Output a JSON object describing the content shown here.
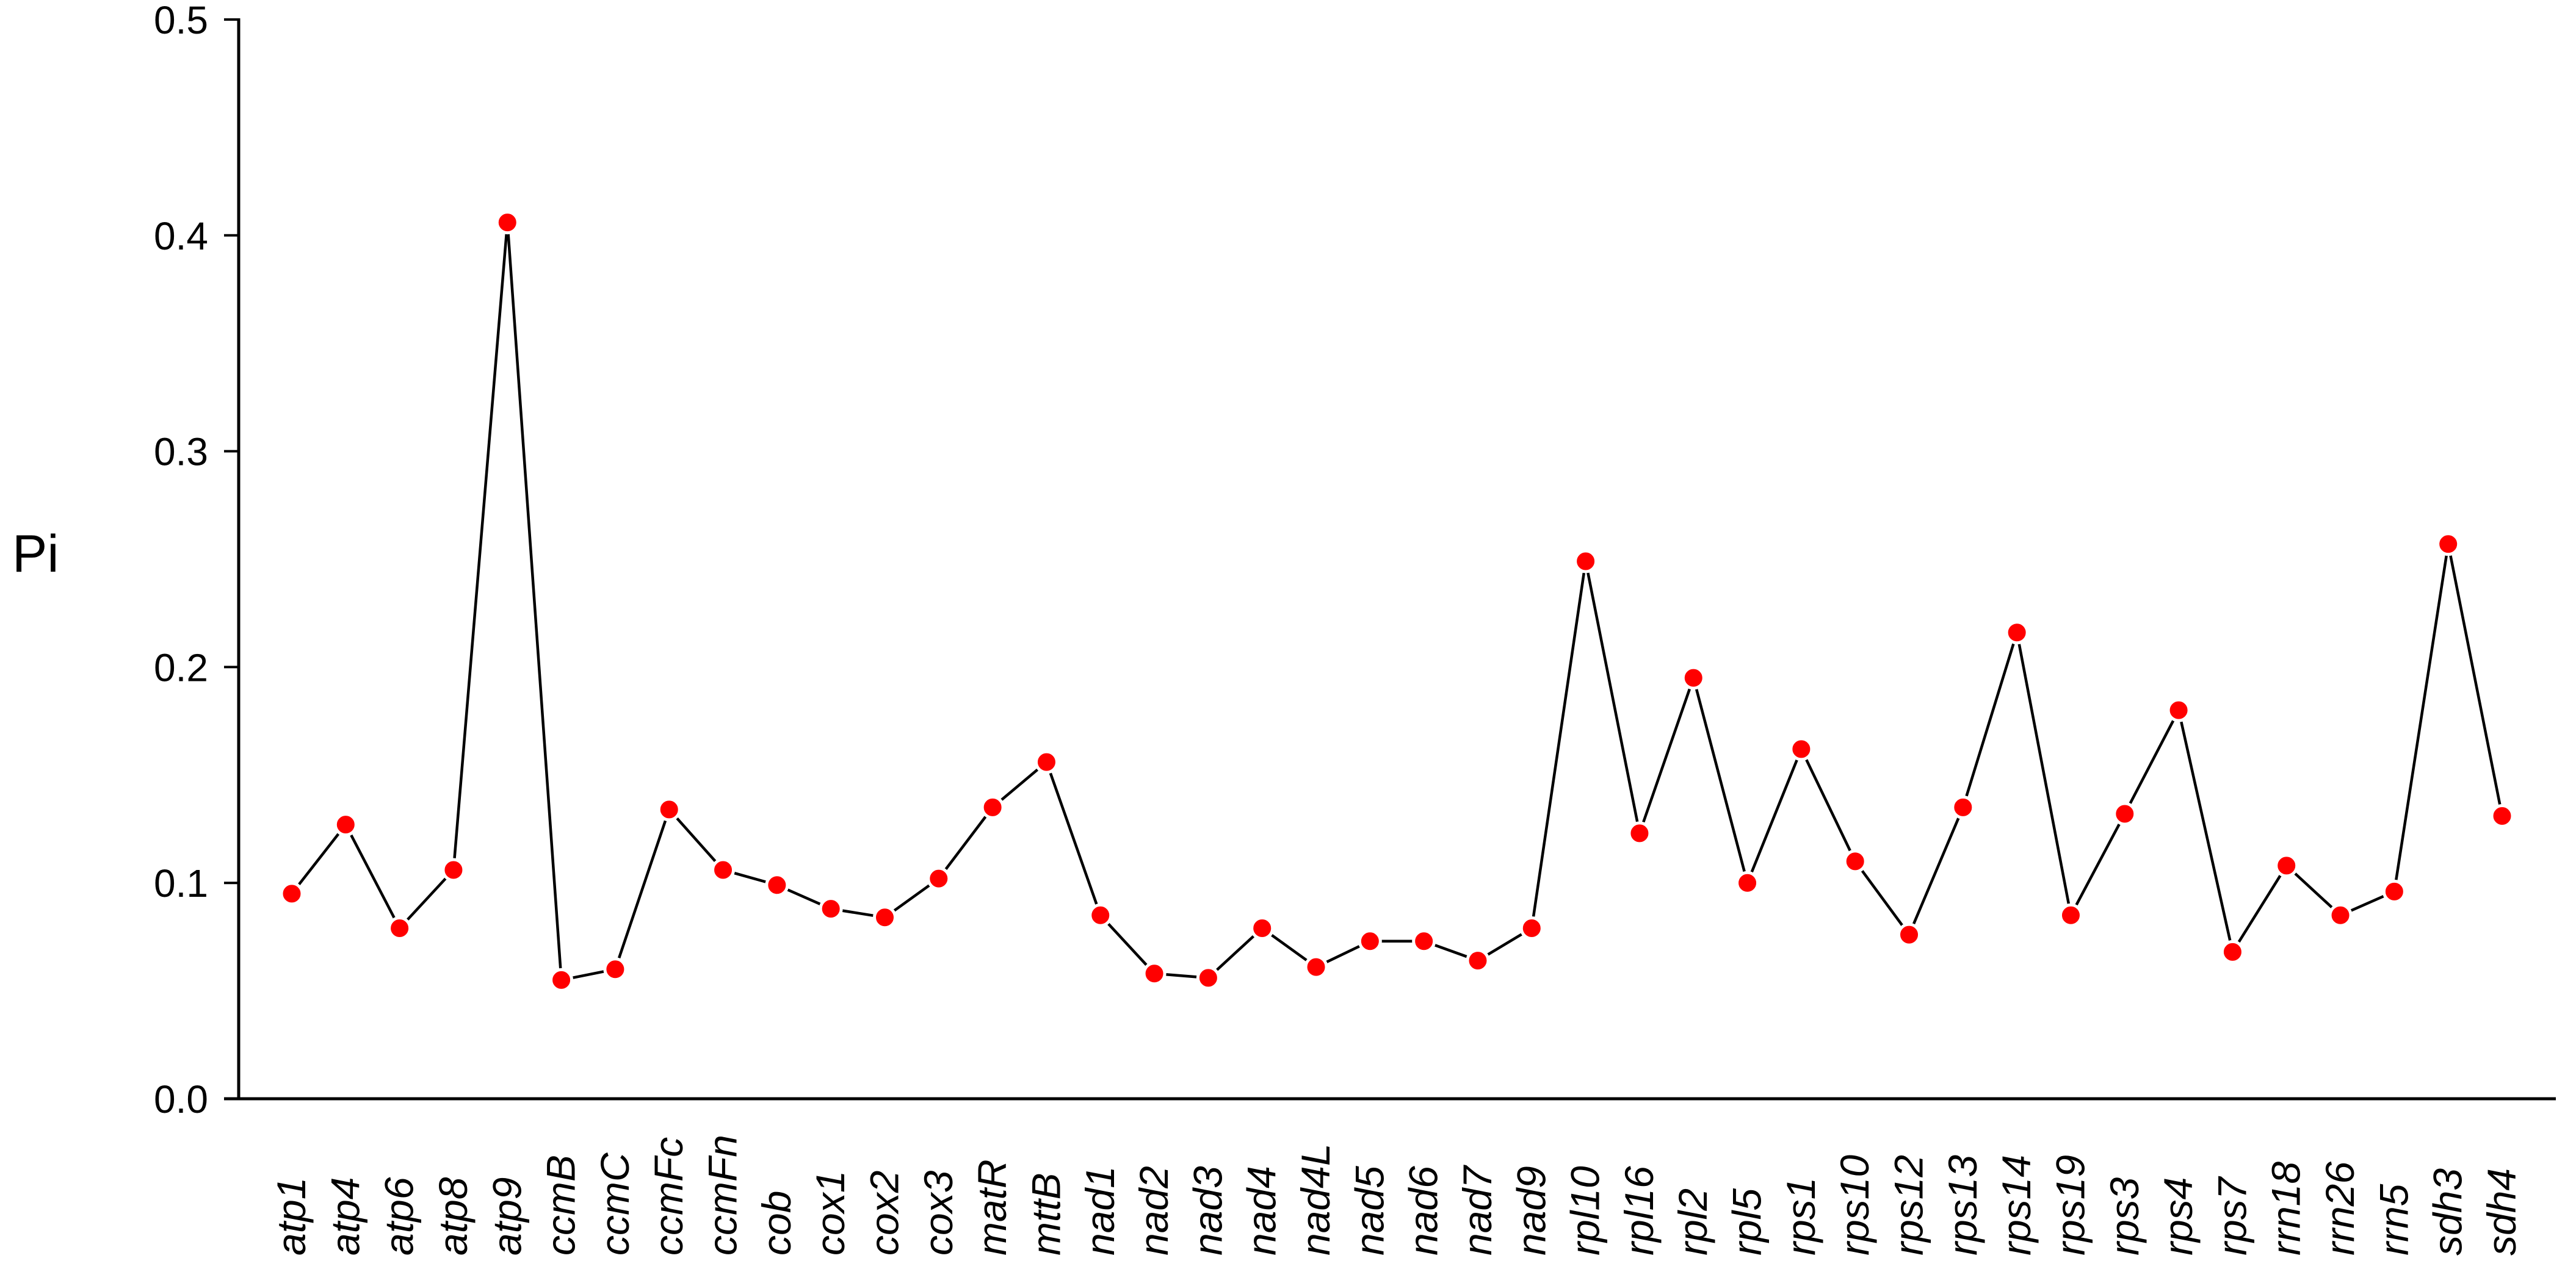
{
  "chart_data": {
    "type": "line",
    "title": "",
    "xlabel": "",
    "ylabel": "Pi",
    "ylim": [
      0.0,
      0.5
    ],
    "yticks": [
      "0.0",
      "0.1",
      "0.2",
      "0.3",
      "0.4",
      "0.5"
    ],
    "grid": false,
    "legend": null,
    "marker": "circle",
    "marker_color": "#ff0000",
    "line_color": "#000000",
    "categories": [
      "atp1",
      "atp4",
      "atp6",
      "atp8",
      "atp9",
      "ccmB",
      "ccmC",
      "ccmFc",
      "ccmFn",
      "cob",
      "cox1",
      "cox2",
      "cox3",
      "matR",
      "mttB",
      "nad1",
      "nad2",
      "nad3",
      "nad4",
      "nad4L",
      "nad5",
      "nad6",
      "nad7",
      "nad9",
      "rpl10",
      "rpl16",
      "rpl2",
      "rpl5",
      "rps1",
      "rps10",
      "rps12",
      "rps13",
      "rps14",
      "rps19",
      "rps3",
      "rps4",
      "rps7",
      "rrn18",
      "rrn26",
      "rrn5",
      "sdh3",
      "sdh4"
    ],
    "series": [
      {
        "name": "Pi",
        "values": [
          0.095,
          0.127,
          0.079,
          0.106,
          0.406,
          0.055,
          0.06,
          0.134,
          0.106,
          0.099,
          0.088,
          0.084,
          0.102,
          0.135,
          0.156,
          0.085,
          0.058,
          0.056,
          0.079,
          0.061,
          0.073,
          0.073,
          0.064,
          0.079,
          0.249,
          0.123,
          0.195,
          0.1,
          0.162,
          0.11,
          0.076,
          0.135,
          0.216,
          0.085,
          0.132,
          0.18,
          0.068,
          0.108,
          0.085,
          0.096,
          0.257,
          0.131
        ]
      }
    ]
  }
}
